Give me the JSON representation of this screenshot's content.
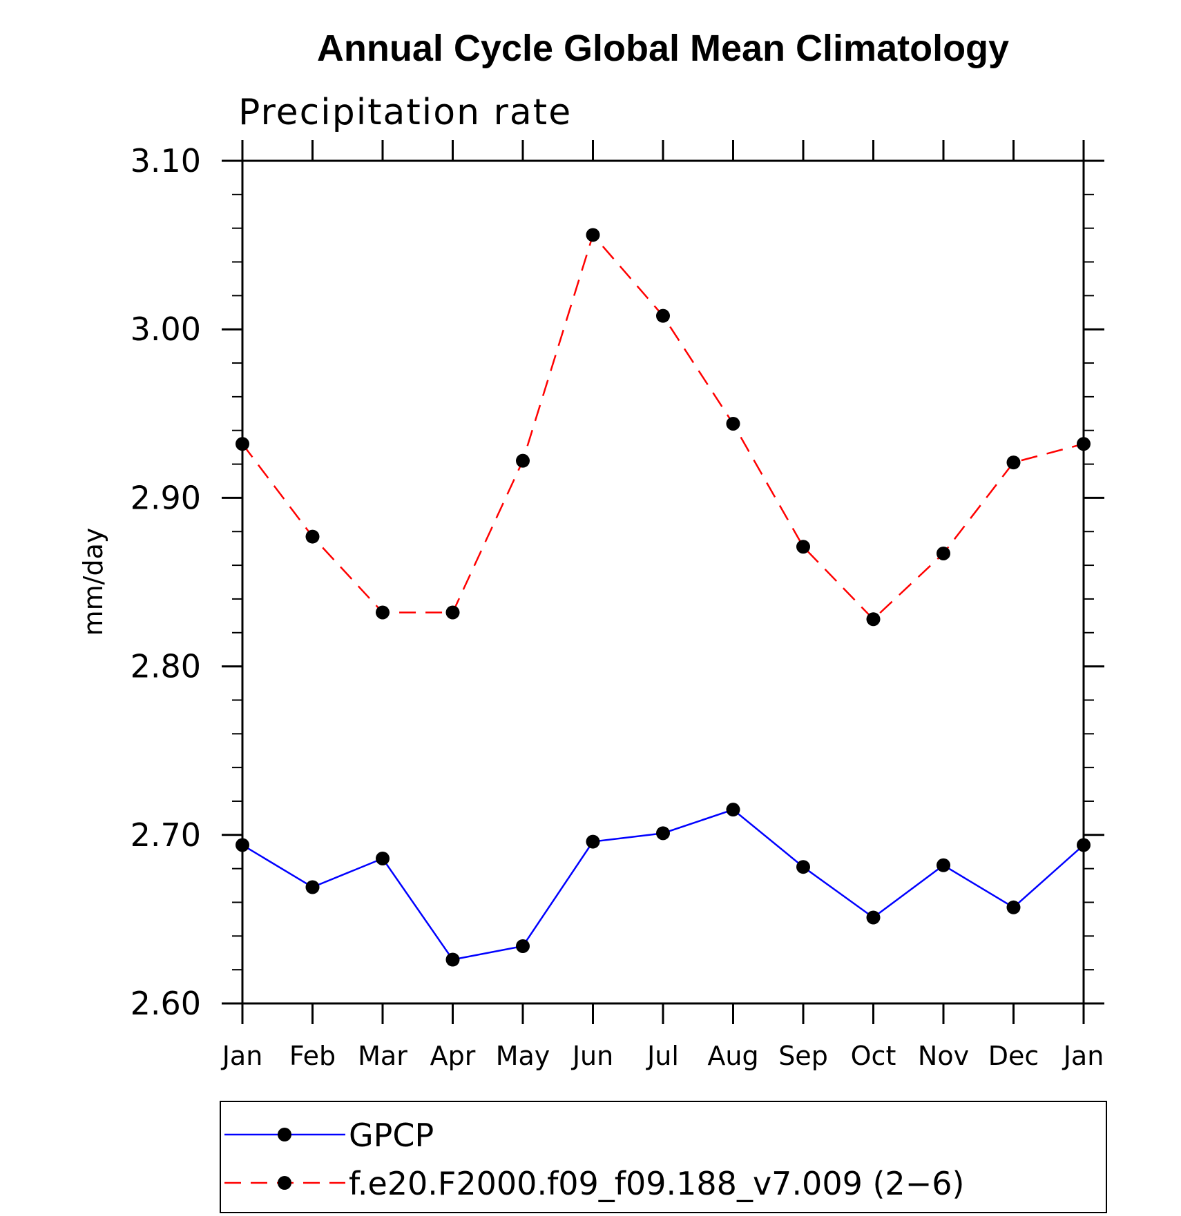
{
  "chart_data": {
    "type": "line",
    "title": "Annual Cycle Global Mean Climatology",
    "subtitle": "Precipitation rate",
    "xlabel": "",
    "ylabel": "mm/day",
    "categories": [
      "Jan",
      "Feb",
      "Mar",
      "Apr",
      "May",
      "Jun",
      "Jul",
      "Aug",
      "Sep",
      "Oct",
      "Nov",
      "Dec",
      "Jan"
    ],
    "ylim": [
      2.6,
      3.1
    ],
    "yticks": [
      "2.60",
      "2.70",
      "2.80",
      "2.90",
      "3.00",
      "3.10"
    ],
    "grid": false,
    "legend_position": "bottom",
    "series": [
      {
        "name": "GPCP",
        "color": "#0000ff",
        "line_style": "solid",
        "marker": "filled-circle",
        "values": [
          2.694,
          2.669,
          2.686,
          2.626,
          2.634,
          2.696,
          2.701,
          2.715,
          2.681,
          2.651,
          2.682,
          2.657,
          2.694
        ]
      },
      {
        "name": "f.e20.F2000.f09_f09.188_v7.009 (2−6)",
        "color": "#ff0000",
        "line_style": "dashed",
        "marker": "filled-circle",
        "values": [
          2.932,
          2.877,
          2.832,
          2.832,
          2.922,
          3.056,
          3.008,
          2.944,
          2.871,
          2.828,
          2.867,
          2.921,
          2.932
        ]
      }
    ]
  }
}
